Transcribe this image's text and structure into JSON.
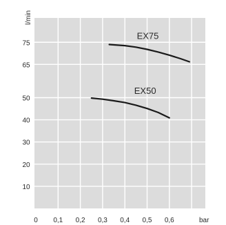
{
  "chart_data": {
    "type": "line",
    "title": "",
    "xlabel": "bar",
    "ylabel": "l/min",
    "x_ticks": [
      "0",
      "0,1",
      "0,2",
      "0,3",
      "0,4",
      "0,5",
      "0,6"
    ],
    "y_ticks": [
      "10",
      "20",
      "30",
      "40",
      "50",
      "65",
      "75"
    ],
    "xlim": [
      0,
      0.75
    ],
    "ylim": [
      0,
      80
    ],
    "grid": true,
    "series": [
      {
        "name": "EX75",
        "x": [
          0.33,
          0.4,
          0.45,
          0.5,
          0.55,
          0.6,
          0.65,
          0.69
        ],
        "y": [
          74,
          73.5,
          72.8,
          71.8,
          70.6,
          69.2,
          67.6,
          66.2
        ]
      },
      {
        "name": "EX50",
        "x": [
          0.25,
          0.3,
          0.35,
          0.4,
          0.45,
          0.5,
          0.55,
          0.6
        ],
        "y": [
          49.8,
          49.3,
          48.6,
          47.8,
          46.6,
          45.1,
          43.3,
          40.9
        ]
      }
    ],
    "colors": {
      "plot_background": "#dcdcdc",
      "grid": "#ffffff",
      "line": "#1a1a1a",
      "text": "#2a2a2a"
    }
  }
}
